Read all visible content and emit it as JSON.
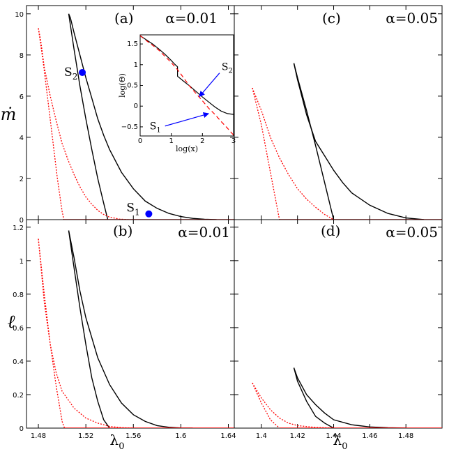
{
  "figure": {
    "ylabel_top": "ṁ",
    "ylabel_bottom": "ℓ",
    "xlabel_left": "λ",
    "xlabel_right": "λ",
    "xlabel_sub": "0"
  },
  "colors": {
    "solid": "#000000",
    "dotted": "#ff0000",
    "marker": "#0000ff",
    "text": "#000000"
  },
  "chart_data": [
    {
      "id": "a",
      "type": "line",
      "panel_label": "(a)",
      "alpha_label": "α=0.01",
      "xlim": [
        1.47,
        1.645
      ],
      "ylim": [
        0,
        10.4
      ],
      "xticks": [
        1.48,
        1.52,
        1.56,
        1.6,
        1.64
      ],
      "yticks": [
        0,
        2,
        4,
        6,
        8,
        10
      ],
      "ytick_labels": [
        "0",
        "2",
        "4",
        "6",
        "8",
        "10"
      ],
      "series": [
        {
          "style": "solid",
          "x": [
            1.5055,
            1.507,
            1.51,
            1.515,
            1.52,
            1.525,
            1.53,
            1.535,
            1.54,
            1.55,
            1.56,
            1.57,
            1.58,
            1.59,
            1.6,
            1.61,
            1.62,
            1.63
          ],
          "y": [
            10.0,
            9.8,
            9.1,
            8.0,
            6.9,
            5.9,
            4.9,
            4.1,
            3.4,
            2.3,
            1.5,
            0.9,
            0.55,
            0.3,
            0.15,
            0.06,
            0.02,
            0.0
          ]
        },
        {
          "style": "solid",
          "x": [
            1.5055,
            1.51,
            1.515,
            1.52,
            1.525,
            1.53,
            1.535,
            1.5385
          ],
          "y": [
            10.0,
            8.3,
            6.5,
            4.9,
            3.4,
            2.0,
            0.8,
            0.0
          ]
        },
        {
          "style": "dotted",
          "x": [
            1.48,
            1.482,
            1.485,
            1.49,
            1.495,
            1.5,
            1.505,
            1.51,
            1.515,
            1.52,
            1.525,
            1.53,
            1.535,
            1.54,
            1.548,
            1.556
          ],
          "y": [
            9.3,
            8.7,
            7.4,
            6.0,
            4.8,
            3.7,
            2.9,
            2.2,
            1.6,
            1.1,
            0.75,
            0.45,
            0.25,
            0.12,
            0.03,
            0.0
          ]
        },
        {
          "style": "dotted",
          "x": [
            1.48,
            1.484,
            1.488,
            1.492,
            1.496,
            1.5,
            1.5015
          ],
          "y": [
            9.3,
            7.7,
            5.8,
            3.9,
            2.0,
            0.4,
            0.0
          ]
        },
        {
          "style": "baseline",
          "x": [
            1.5015,
            1.645
          ],
          "y": [
            0,
            0
          ]
        }
      ],
      "markers": [
        {
          "x": 1.517,
          "y": 7.15,
          "label": "S",
          "sub": "2",
          "side": "left"
        },
        {
          "x": 1.573,
          "y": 0.28,
          "label": "S",
          "sub": "1",
          "side": "top"
        }
      ],
      "inset": {
        "xlabel": "log(x)",
        "ylabel": "log(Θ)",
        "xlim": [
          0,
          3
        ],
        "ylim": [
          -0.72,
          1.72
        ],
        "xticks": [
          0,
          1,
          2,
          3
        ],
        "yticks": [
          -0.5,
          0,
          0.5,
          1,
          1.5
        ],
        "ytick_labels": [
          "−0.5",
          "0",
          "0.5",
          "1",
          "1.5"
        ],
        "series": [
          {
            "style": "solid",
            "x": [
              0,
              0.2,
              0.4,
              0.6,
              0.8,
              1.0,
              1.1,
              1.2,
              1.2,
              1.4,
              1.6,
              1.8,
              2.0,
              2.2,
              2.4,
              2.6,
              2.8,
              3.0
            ],
            "y": [
              1.7,
              1.6,
              1.5,
              1.38,
              1.25,
              1.1,
              1.02,
              0.95,
              0.72,
              0.6,
              0.48,
              0.35,
              0.22,
              0.1,
              -0.02,
              -0.12,
              -0.18,
              -0.2
            ]
          },
          {
            "style": "dashed",
            "x": [
              0,
              0.2,
              0.4,
              0.6,
              0.8,
              1.0,
              1.2,
              1.4,
              1.6,
              1.8,
              2.0,
              2.2,
              2.4,
              2.6,
              2.8,
              3.0
            ],
            "y": [
              1.7,
              1.58,
              1.47,
              1.35,
              1.2,
              1.05,
              0.88,
              0.68,
              0.47,
              0.3,
              0.13,
              -0.05,
              -0.2,
              -0.37,
              -0.53,
              -0.7
            ]
          }
        ],
        "arrows": [
          {
            "label": "S",
            "sub": "2",
            "from": [
              2.55,
              0.8
            ],
            "to": [
              1.9,
              0.23
            ]
          },
          {
            "label": "S",
            "sub": "1",
            "from": [
              0.8,
              -0.48
            ],
            "to": [
              2.2,
              -0.18
            ]
          }
        ]
      }
    },
    {
      "id": "c",
      "type": "line",
      "panel_label": "(c)",
      "alpha_label": "α=0.05",
      "xlim": [
        1.385,
        1.5
      ],
      "ylim": [
        0,
        10.4
      ],
      "xticks": [
        1.4,
        1.42,
        1.44,
        1.46,
        1.48
      ],
      "yticks": [
        0,
        2,
        4,
        6,
        8,
        10
      ],
      "ytick_labels": [],
      "series": [
        {
          "style": "solid",
          "x": [
            1.418,
            1.42,
            1.425,
            1.43,
            1.435,
            1.44,
            1.445,
            1.45,
            1.46,
            1.47,
            1.48,
            1.49
          ],
          "y": [
            7.6,
            6.8,
            5.1,
            3.8,
            3.1,
            2.4,
            1.8,
            1.3,
            0.7,
            0.3,
            0.08,
            0.0
          ]
        },
        {
          "style": "solid",
          "x": [
            1.418,
            1.42,
            1.425,
            1.43,
            1.435,
            1.44
          ],
          "y": [
            7.6,
            6.9,
            5.3,
            3.6,
            1.8,
            0.0
          ]
        },
        {
          "style": "dotted",
          "x": [
            1.395,
            1.4,
            1.405,
            1.41,
            1.415,
            1.42,
            1.425,
            1.43,
            1.435,
            1.44
          ],
          "y": [
            6.4,
            5.3,
            4.0,
            3.0,
            2.2,
            1.5,
            1.0,
            0.6,
            0.25,
            0.0
          ]
        },
        {
          "style": "dotted",
          "x": [
            1.395,
            1.4,
            1.405,
            1.41
          ],
          "y": [
            6.4,
            4.6,
            2.3,
            0.0
          ]
        },
        {
          "style": "baseline",
          "x": [
            1.41,
            1.5
          ],
          "y": [
            0,
            0
          ]
        }
      ]
    },
    {
      "id": "b",
      "type": "line",
      "panel_label": "(b)",
      "alpha_label": "α=0.01",
      "xlim": [
        1.47,
        1.645
      ],
      "ylim": [
        0,
        1.245
      ],
      "xticks": [
        1.48,
        1.52,
        1.56,
        1.6,
        1.64
      ],
      "xtick_labels": [
        "1.48",
        "1.52",
        "1.56",
        "1.6",
        "1.64"
      ],
      "yticks": [
        0,
        0.2,
        0.4,
        0.6,
        0.8,
        1,
        1.2
      ],
      "ytick_labels": [
        "0",
        "0.2",
        "0.4",
        "0.6",
        "0.8",
        "1",
        "1.2"
      ],
      "series": [
        {
          "style": "solid",
          "x": [
            1.5055,
            1.51,
            1.515,
            1.52,
            1.53,
            1.54,
            1.55,
            1.56,
            1.57,
            1.58,
            1.59,
            1.6,
            1.61
          ],
          "y": [
            1.18,
            1.02,
            0.82,
            0.66,
            0.42,
            0.26,
            0.15,
            0.08,
            0.04,
            0.015,
            0.005,
            0.001,
            0.0
          ]
        },
        {
          "style": "solid",
          "x": [
            1.5055,
            1.51,
            1.515,
            1.52,
            1.525,
            1.53,
            1.535,
            1.54
          ],
          "y": [
            1.18,
            0.96,
            0.72,
            0.5,
            0.3,
            0.16,
            0.05,
            0.0
          ]
        },
        {
          "style": "dotted",
          "x": [
            1.48,
            1.485,
            1.49,
            1.495,
            1.5,
            1.51,
            1.52,
            1.53,
            1.54,
            1.55,
            1.56
          ],
          "y": [
            1.13,
            0.75,
            0.5,
            0.33,
            0.22,
            0.12,
            0.06,
            0.03,
            0.01,
            0.003,
            0.0
          ]
        },
        {
          "style": "dotted",
          "x": [
            1.48,
            1.485,
            1.49,
            1.495,
            1.5,
            1.502
          ],
          "y": [
            1.13,
            0.8,
            0.5,
            0.25,
            0.04,
            0.0
          ]
        },
        {
          "style": "baseline",
          "x": [
            1.502,
            1.645
          ],
          "y": [
            0,
            0
          ]
        }
      ]
    },
    {
      "id": "d",
      "type": "line",
      "panel_label": "(d)",
      "alpha_label": "α=0.05",
      "xlim": [
        1.385,
        1.5
      ],
      "ylim": [
        0,
        1.245
      ],
      "xticks": [
        1.4,
        1.42,
        1.44,
        1.46,
        1.48
      ],
      "xtick_labels": [
        "1.4",
        "1.42",
        "1.44",
        "1.46",
        "1.48"
      ],
      "yticks": [
        0,
        0.2,
        0.4,
        0.6,
        0.8,
        1,
        1.2
      ],
      "ytick_labels": [],
      "series": [
        {
          "style": "solid",
          "x": [
            1.418,
            1.42,
            1.425,
            1.43,
            1.435,
            1.44,
            1.45,
            1.46,
            1.47,
            1.48
          ],
          "y": [
            0.36,
            0.3,
            0.2,
            0.14,
            0.09,
            0.05,
            0.02,
            0.007,
            0.002,
            0.0
          ]
        },
        {
          "style": "solid",
          "x": [
            1.418,
            1.42,
            1.425,
            1.43,
            1.435,
            1.44
          ],
          "y": [
            0.36,
            0.28,
            0.16,
            0.07,
            0.03,
            0.0
          ]
        },
        {
          "style": "dotted",
          "x": [
            1.395,
            1.4,
            1.405,
            1.41,
            1.415,
            1.42,
            1.43,
            1.44
          ],
          "y": [
            0.27,
            0.18,
            0.11,
            0.06,
            0.03,
            0.015,
            0.004,
            0.0
          ]
        },
        {
          "style": "dotted",
          "x": [
            1.395,
            1.4,
            1.405,
            1.41
          ],
          "y": [
            0.27,
            0.15,
            0.05,
            0.0
          ]
        },
        {
          "style": "baseline",
          "x": [
            1.41,
            1.5
          ],
          "y": [
            0,
            0
          ]
        }
      ]
    }
  ]
}
